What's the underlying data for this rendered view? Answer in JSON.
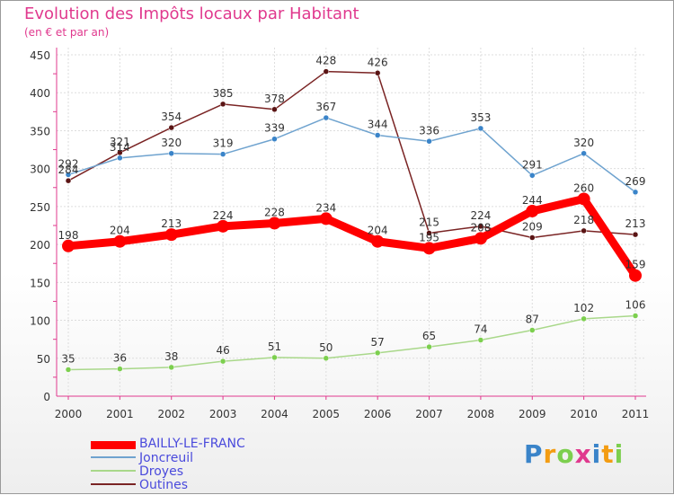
{
  "chart_data": {
    "type": "line",
    "title": "Evolution des Impôts locaux par Habitant",
    "subtitle": "(en € et par an)",
    "xlabel": "",
    "ylabel": "",
    "ylim": [
      0,
      450
    ],
    "yticks": [
      0,
      50,
      100,
      150,
      200,
      250,
      300,
      350,
      400,
      450
    ],
    "categories": [
      "2000",
      "2001",
      "2002",
      "2003",
      "2004",
      "2005",
      "2006",
      "2007",
      "2008",
      "2009",
      "2010",
      "2011"
    ],
    "series": [
      {
        "name": "Outines",
        "color": "#7a2424",
        "marker": "#5a1414",
        "values": [
          284,
          321,
          354,
          385,
          378,
          428,
          426,
          215,
          224,
          209,
          218,
          213
        ]
      },
      {
        "name": "Joncreuil",
        "color": "#6fa3cf",
        "marker": "#3a84c9",
        "values": [
          292,
          314,
          320,
          319,
          339,
          367,
          344,
          336,
          353,
          291,
          320,
          269
        ]
      },
      {
        "name": "Droyes",
        "color": "#a9d88a",
        "marker": "#7ccf4e",
        "values": [
          35,
          36,
          38,
          46,
          51,
          50,
          57,
          65,
          74,
          87,
          102,
          106
        ]
      },
      {
        "name": "BAILLY-LE-FRANC",
        "color": "#ff0000",
        "marker": "#ff0000",
        "values": [
          198,
          204,
          213,
          224,
          228,
          234,
          204,
          195,
          208,
          244,
          260,
          159
        ]
      }
    ],
    "legend": {
      "position": "bottom-left",
      "entries": [
        "BAILLY-LE-FRANC",
        "Joncreuil",
        "Droyes",
        "Outines"
      ]
    }
  },
  "logo": {
    "letters": [
      "P",
      "r",
      "o",
      "x",
      "i",
      "t",
      "i"
    ]
  }
}
